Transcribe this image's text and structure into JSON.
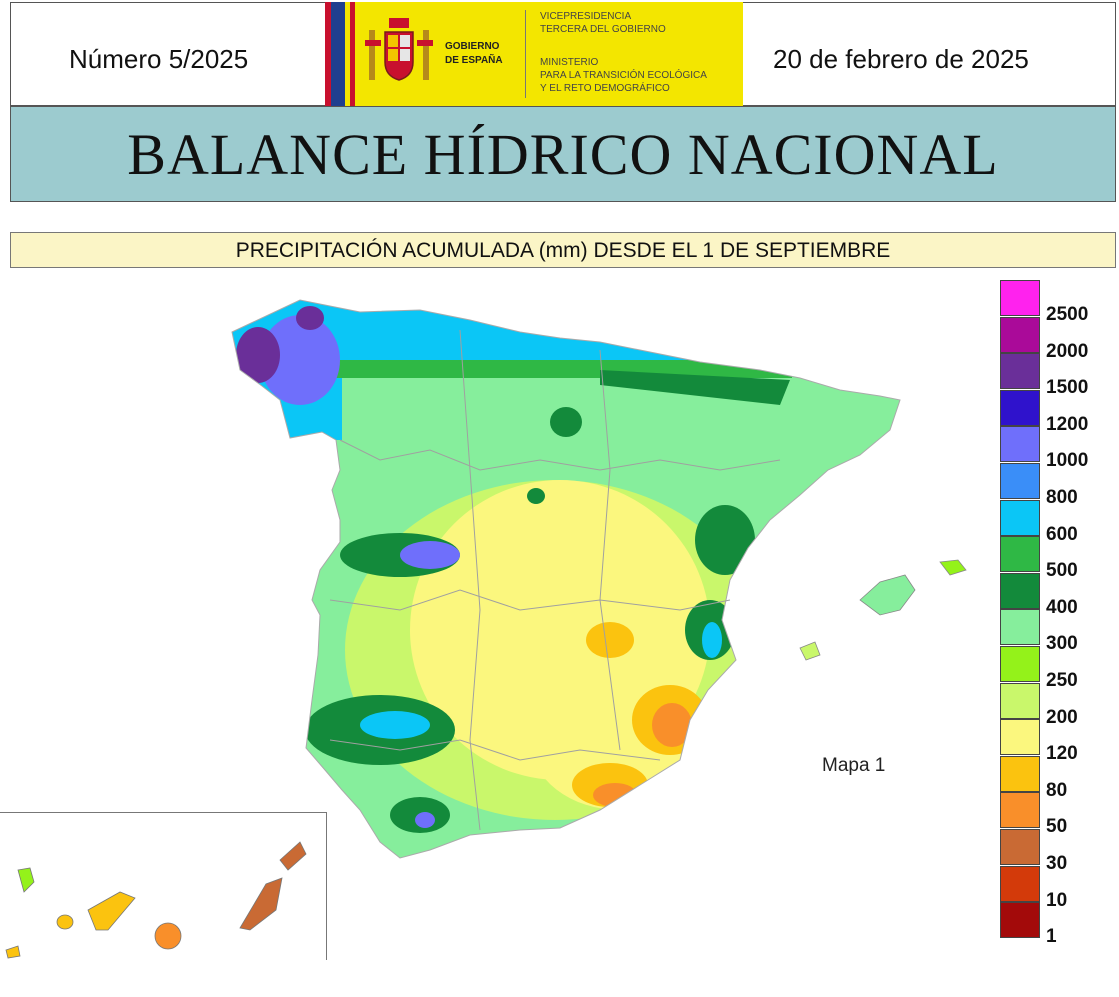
{
  "header": {
    "issue": "Número 5/2025",
    "date": "20 de febrero de 2025",
    "government": {
      "line1": "GOBIERNO",
      "line2": "DE ESPAÑA"
    },
    "vice": {
      "line1": "VICEPRESIDENCIA",
      "line2": "TERCERA DEL GOBIERNO"
    },
    "ministry": {
      "line1": "MINISTERIO",
      "line2": "PARA LA TRANSICIÓN ECOLÓGICA",
      "line3": "Y EL RETO DEMOGRÁFICO"
    }
  },
  "title": "BALANCE HÍDRICO NACIONAL",
  "subtitle": "PRECIPITACIÓN ACUMULADA (mm) DESDE EL 1 DE SEPTIEMBRE",
  "map": {
    "label": "Mapa 1",
    "unit": "mm"
  },
  "legend": {
    "items": [
      {
        "label": "2500",
        "color": "#ff22ee"
      },
      {
        "label": "2000",
        "color": "#aa0a99"
      },
      {
        "label": "1500",
        "color": "#6a2f99"
      },
      {
        "label": "1200",
        "color": "#2f12cc"
      },
      {
        "label": "1000",
        "color": "#6f6ffb"
      },
      {
        "label": "800",
        "color": "#3a8ef8"
      },
      {
        "label": "600",
        "color": "#0bc6f6"
      },
      {
        "label": "500",
        "color": "#2fb845"
      },
      {
        "label": "400",
        "color": "#138a3b"
      },
      {
        "label": "300",
        "color": "#86ee9c"
      },
      {
        "label": "250",
        "color": "#94f21a"
      },
      {
        "label": "200",
        "color": "#c9f76b"
      },
      {
        "label": "120",
        "color": "#fbf77e"
      },
      {
        "label": "80",
        "color": "#fbc30f"
      },
      {
        "label": "50",
        "color": "#f98f2a"
      },
      {
        "label": "30",
        "color": "#c96a34"
      },
      {
        "label": "10",
        "color": "#d33a0a"
      },
      {
        "label": "1",
        "color": "#a30a0a"
      }
    ]
  }
}
